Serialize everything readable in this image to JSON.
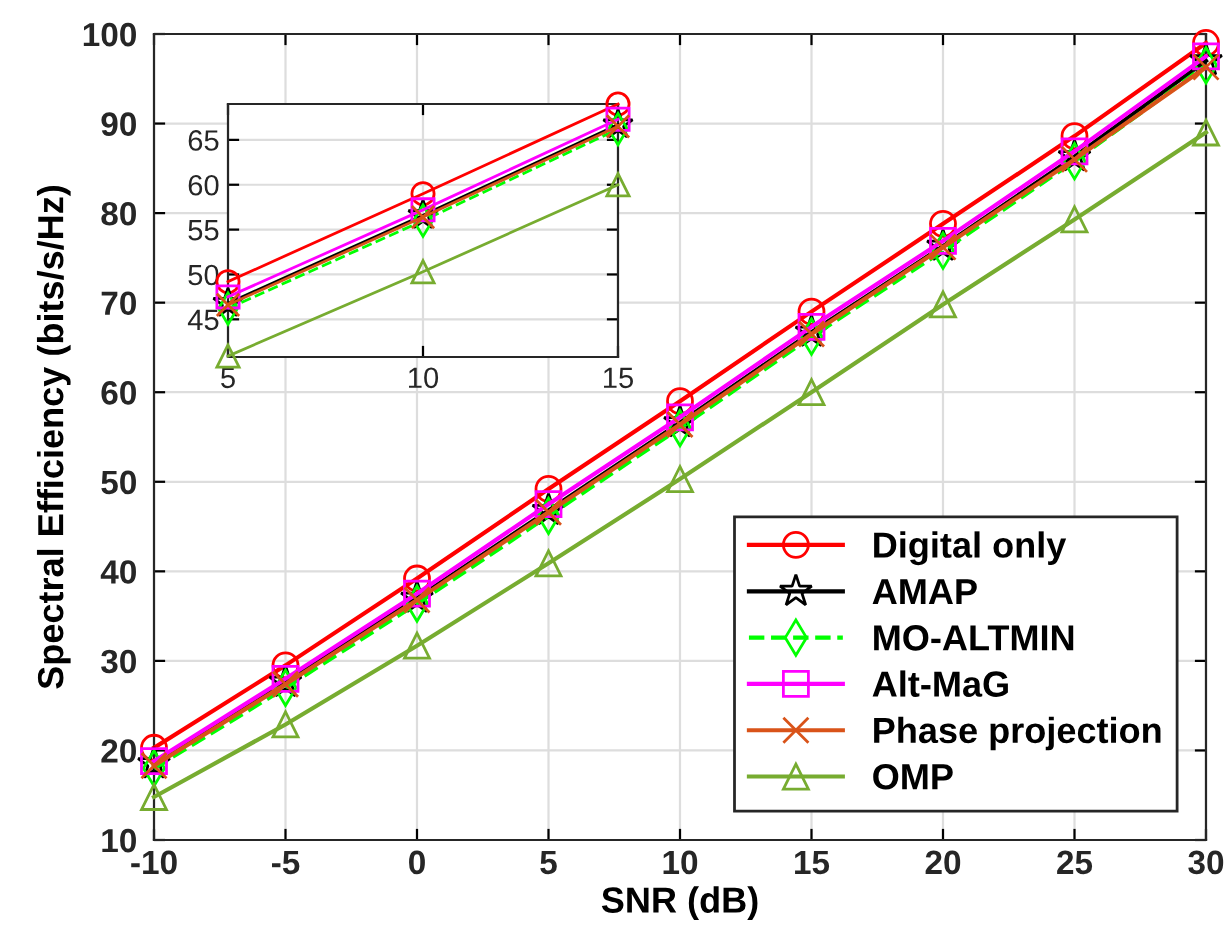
{
  "chart_data": [
    {
      "type": "line",
      "xlabel": "SNR (dB)",
      "ylabel": "Spectral Efficiency (bits/s/Hz)",
      "x": [
        -10,
        -5,
        0,
        5,
        10,
        15,
        20,
        25,
        30
      ],
      "xlim": [
        -10,
        30
      ],
      "xticks": [
        -10,
        -5,
        0,
        5,
        10,
        15,
        20,
        25,
        30
      ],
      "ylim": [
        10,
        100
      ],
      "yticks": [
        10,
        20,
        30,
        40,
        50,
        60,
        70,
        80,
        90,
        100
      ],
      "grid": true,
      "legend": "bottom right",
      "series": [
        {
          "name": "Digital only",
          "color": "#ff0000",
          "marker": "circle",
          "values": [
            20.3,
            29.5,
            39.2,
            49.2,
            59.0,
            69.0,
            78.8,
            88.6,
            99.0
          ]
        },
        {
          "name": "AMAP",
          "color": "#000000",
          "marker": "star",
          "values": [
            18.5,
            27.6,
            37.0,
            46.8,
            56.6,
            66.7,
            76.3,
            86.3,
            97.0
          ]
        },
        {
          "name": "MO-ALTMIN",
          "color": "#00ff00",
          "marker": "diamond",
          "line_style": "dashed",
          "values": [
            18.0,
            27.0,
            36.4,
            46.2,
            56.0,
            66.2,
            75.8,
            85.8,
            96.5
          ]
        },
        {
          "name": "Alt-MaG",
          "color": "#ff00ff",
          "marker": "square",
          "values": [
            18.8,
            28.0,
            37.5,
            47.5,
            57.2,
            67.3,
            76.9,
            86.9,
            97.5
          ]
        },
        {
          "name": "Phase projection",
          "color": "#d95319",
          "marker": "cross",
          "values": [
            18.3,
            27.4,
            36.8,
            46.6,
            56.4,
            66.5,
            76.2,
            86.0,
            96.3
          ]
        },
        {
          "name": "OMP",
          "color": "#77ac30",
          "marker": "triangle",
          "values": [
            14.8,
            22.9,
            31.7,
            40.9,
            50.3,
            60.0,
            69.8,
            79.3,
            89.0
          ]
        }
      ]
    },
    {
      "type": "line",
      "x": [
        5,
        10,
        15
      ],
      "xlim": [
        5,
        15
      ],
      "xticks": [
        5,
        10,
        15
      ],
      "ylim": [
        40.8,
        69
      ],
      "yticks": [
        45,
        50,
        55,
        60,
        65
      ],
      "grid": true,
      "series": [
        {
          "color": "#ff0000",
          "marker": "circle",
          "values": [
            49.2,
            59.0,
            69.0
          ]
        },
        {
          "color": "#000000",
          "marker": "star",
          "values": [
            46.8,
            56.6,
            66.7
          ]
        },
        {
          "color": "#00ff00",
          "marker": "diamond",
          "line_style": "dashed",
          "values": [
            46.2,
            56.0,
            66.2
          ]
        },
        {
          "color": "#ff00ff",
          "marker": "square",
          "values": [
            47.5,
            57.2,
            67.3
          ]
        },
        {
          "color": "#d95319",
          "marker": "cross",
          "values": [
            46.6,
            56.4,
            66.5
          ]
        },
        {
          "color": "#77ac30",
          "marker": "triangle",
          "values": [
            40.9,
            50.3,
            60.0
          ]
        }
      ]
    }
  ]
}
